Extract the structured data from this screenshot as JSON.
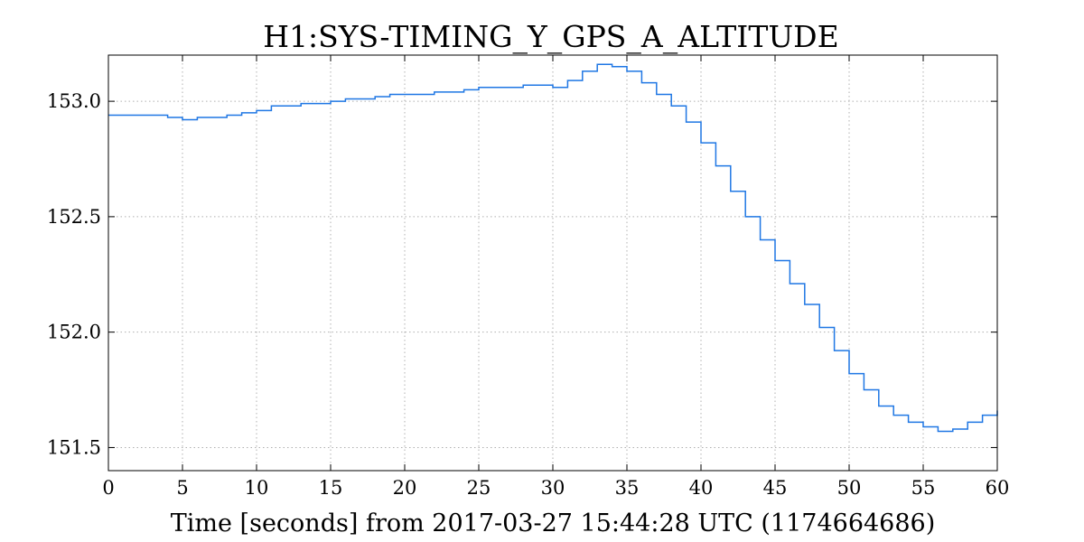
{
  "chart_data": {
    "type": "line",
    "title": "H1:SYS-TIMING_Y_GPS_A_ALTITUDE",
    "xlabel": "Time [seconds] from 2017-03-27 15:44:28 UTC (1174664686)",
    "ylabel": "",
    "xlim": [
      0,
      60
    ],
    "ylim": [
      151.4,
      153.2
    ],
    "xticks": [
      0,
      5,
      10,
      15,
      20,
      25,
      30,
      35,
      40,
      45,
      50,
      55,
      60
    ],
    "xtick_labels": [
      "0",
      "5",
      "10",
      "15",
      "20",
      "25",
      "30",
      "35",
      "40",
      "45",
      "50",
      "55",
      "60"
    ],
    "yticks": [
      151.5,
      152.0,
      152.5,
      153.0
    ],
    "ytick_labels": [
      "151.5",
      "152.0",
      "152.5",
      "153.0"
    ],
    "grid": true,
    "step": "post",
    "line_color": "#1f77e4",
    "series": [
      {
        "name": "",
        "x": [
          0,
          1,
          2,
          3,
          4,
          5,
          6,
          7,
          8,
          9,
          10,
          11,
          12,
          13,
          14,
          15,
          16,
          17,
          18,
          19,
          20,
          21,
          22,
          23,
          24,
          25,
          26,
          27,
          28,
          29,
          30,
          31,
          32,
          33,
          34,
          35,
          36,
          37,
          38,
          39,
          40,
          41,
          42,
          43,
          44,
          45,
          46,
          47,
          48,
          49,
          50,
          51,
          52,
          53,
          54,
          55,
          56,
          57,
          58,
          59,
          60
        ],
        "y": [
          152.94,
          152.94,
          152.94,
          152.94,
          152.93,
          152.92,
          152.93,
          152.93,
          152.94,
          152.95,
          152.96,
          152.98,
          152.98,
          152.99,
          152.99,
          153.0,
          153.01,
          153.01,
          153.02,
          153.03,
          153.03,
          153.03,
          153.04,
          153.04,
          153.05,
          153.06,
          153.06,
          153.06,
          153.07,
          153.07,
          153.06,
          153.09,
          153.13,
          153.16,
          153.15,
          153.13,
          153.08,
          153.03,
          152.98,
          152.91,
          152.82,
          152.72,
          152.61,
          152.5,
          152.4,
          152.31,
          152.21,
          152.12,
          152.02,
          151.92,
          151.82,
          151.75,
          151.68,
          151.64,
          151.61,
          151.59,
          151.57,
          151.58,
          151.61,
          151.64,
          151.66
        ]
      }
    ]
  }
}
